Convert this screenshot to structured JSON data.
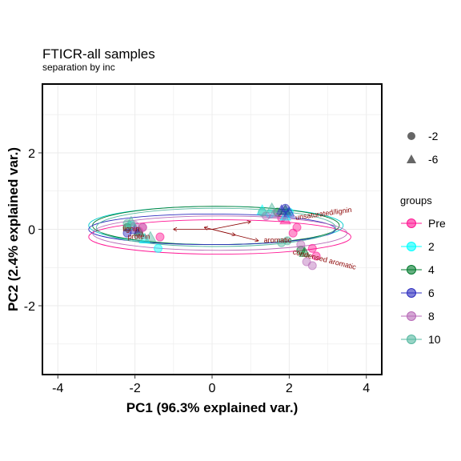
{
  "chart_data": {
    "type": "scatter",
    "title": "FTICR-all samples",
    "subtitle": "separation by inc",
    "xlabel": "PC1 (96.3% explained var.)",
    "ylabel": "PC2 (2.4% explained var.)",
    "xlim": [
      -4.4,
      4.4
    ],
    "ylim": [
      -3.8,
      3.8
    ],
    "xticks": [
      -4,
      -2,
      0,
      2,
      4
    ],
    "yticks": [
      -2,
      0,
      2
    ],
    "grid": true,
    "legend_shape": {
      "entries": [
        {
          "label": "-2",
          "shape": "circle"
        },
        {
          "label": "-6",
          "shape": "triangle"
        }
      ]
    },
    "legend_groups": {
      "title": "groups",
      "entries": [
        {
          "label": "Pre",
          "color": "#ff1493"
        },
        {
          "label": "2",
          "color": "#00ffff"
        },
        {
          "label": "4",
          "color": "#007a2d"
        },
        {
          "label": "6",
          "color": "#2d2dbf"
        },
        {
          "label": "8",
          "color": "#b86bb8"
        },
        {
          "label": "10",
          "color": "#55b8a0"
        }
      ]
    },
    "ellipses": [
      {
        "group": "Pre",
        "cx": 0.2,
        "cy": -0.2,
        "rx": 3.4,
        "ry": 0.45,
        "color": "#ff1493"
      },
      {
        "group": "2",
        "cx": 0.1,
        "cy": 0.1,
        "rx": 3.3,
        "ry": 0.5,
        "color": "#00cccc"
      },
      {
        "group": "4",
        "cx": 0.1,
        "cy": 0.1,
        "rx": 3.2,
        "ry": 0.5,
        "color": "#007a2d"
      },
      {
        "group": "6",
        "cx": 0.0,
        "cy": 0.0,
        "rx": 3.2,
        "ry": 0.4,
        "color": "#2d2dbf"
      },
      {
        "group": "8",
        "cx": 0.2,
        "cy": -0.1,
        "rx": 3.3,
        "ry": 0.45,
        "color": "#b86bb8"
      },
      {
        "group": "10",
        "cx": 0.1,
        "cy": 0.05,
        "rx": 3.1,
        "ry": 0.5,
        "color": "#55b8a0"
      }
    ],
    "arrows": [
      {
        "label": "lignin",
        "x": -0.2,
        "y": 0.05
      },
      {
        "label": "aromatic",
        "x": 0.6,
        "y": -0.15
      },
      {
        "label": "condensed aromatic",
        "x": 1.2,
        "y": -0.3
      },
      {
        "label": "unsaturated/lignin",
        "x": 1.0,
        "y": 0.2
      },
      {
        "label": "protein",
        "x": -1.0,
        "y": 0.0
      }
    ],
    "arrow_labels": [
      {
        "text": "unsaturated/lignin",
        "x": 2.9,
        "y": 0.35,
        "angle": -8
      },
      {
        "text": "condensed aromatic",
        "x": 2.9,
        "y": -0.85,
        "angle": 14
      },
      {
        "text": "aromatic",
        "x": 1.7,
        "y": -0.35,
        "angle": 0
      },
      {
        "text": "protein",
        "x": -1.9,
        "y": -0.25,
        "angle": 0
      },
      {
        "text": "lignin",
        "x": -2.1,
        "y": -0.05,
        "angle": 0
      }
    ],
    "points": [
      {
        "group": "Pre",
        "shape": "circle",
        "x": -1.9,
        "y": -0.05
      },
      {
        "group": "Pre",
        "shape": "circle",
        "x": -1.8,
        "y": 0.05
      },
      {
        "group": "Pre",
        "shape": "circle",
        "x": -1.9,
        "y": -0.1
      },
      {
        "group": "Pre",
        "shape": "circle",
        "x": -1.35,
        "y": -0.2
      },
      {
        "group": "Pre",
        "shape": "circle",
        "x": 1.8,
        "y": 0.3
      },
      {
        "group": "Pre",
        "shape": "triangle",
        "x": 1.9,
        "y": 0.25
      },
      {
        "group": "Pre",
        "shape": "circle",
        "x": 2.1,
        "y": -0.1
      },
      {
        "group": "Pre",
        "shape": "circle",
        "x": 2.2,
        "y": 0.05
      },
      {
        "group": "Pre",
        "shape": "circle",
        "x": 2.6,
        "y": -0.5
      },
      {
        "group": "Pre",
        "shape": "circle",
        "x": 2.7,
        "y": -0.7
      },
      {
        "group": "2",
        "shape": "circle",
        "x": -1.4,
        "y": -0.5
      },
      {
        "group": "2",
        "shape": "triangle",
        "x": -1.75,
        "y": -0.25
      },
      {
        "group": "2",
        "shape": "circle",
        "x": -2.1,
        "y": 0.1
      },
      {
        "group": "2",
        "shape": "triangle",
        "x": 1.3,
        "y": 0.5
      },
      {
        "group": "2",
        "shape": "circle",
        "x": 1.5,
        "y": 0.4
      },
      {
        "group": "2",
        "shape": "triangle",
        "x": 1.9,
        "y": 0.35
      },
      {
        "group": "2",
        "shape": "circle",
        "x": 2.0,
        "y": 0.45
      },
      {
        "group": "4",
        "shape": "circle",
        "x": -2.2,
        "y": 0.05
      },
      {
        "group": "4",
        "shape": "triangle",
        "x": -1.9,
        "y": -0.05
      },
      {
        "group": "4",
        "shape": "circle",
        "x": 1.7,
        "y": 0.45
      },
      {
        "group": "4",
        "shape": "triangle",
        "x": 1.9,
        "y": 0.5
      },
      {
        "group": "4",
        "shape": "circle",
        "x": 2.3,
        "y": -0.55
      },
      {
        "group": "4",
        "shape": "triangle",
        "x": 2.4,
        "y": -0.6
      },
      {
        "group": "6",
        "shape": "circle",
        "x": -2.2,
        "y": -0.1
      },
      {
        "group": "6",
        "shape": "triangle",
        "x": -2.0,
        "y": 0.0
      },
      {
        "group": "6",
        "shape": "triangle",
        "x": 1.8,
        "y": 0.5
      },
      {
        "group": "6",
        "shape": "circle",
        "x": 1.9,
        "y": 0.55
      },
      {
        "group": "6",
        "shape": "triangle",
        "x": 2.0,
        "y": 0.45
      },
      {
        "group": "8",
        "shape": "circle",
        "x": -2.0,
        "y": 0.1
      },
      {
        "group": "8",
        "shape": "circle",
        "x": -1.8,
        "y": 0.05
      },
      {
        "group": "8",
        "shape": "circle",
        "x": 1.4,
        "y": 0.35
      },
      {
        "group": "8",
        "shape": "triangle",
        "x": 1.6,
        "y": 0.4
      },
      {
        "group": "8",
        "shape": "circle",
        "x": 2.3,
        "y": -0.4
      },
      {
        "group": "8",
        "shape": "circle",
        "x": 2.45,
        "y": -0.85
      },
      {
        "group": "8",
        "shape": "circle",
        "x": 2.6,
        "y": -0.95
      },
      {
        "group": "10",
        "shape": "circle",
        "x": -2.2,
        "y": 0.15
      },
      {
        "group": "10",
        "shape": "triangle",
        "x": -2.1,
        "y": 0.2
      },
      {
        "group": "10",
        "shape": "circle",
        "x": -1.9,
        "y": -0.2
      },
      {
        "group": "10",
        "shape": "triangle",
        "x": -1.6,
        "y": -0.2
      },
      {
        "group": "10",
        "shape": "circle",
        "x": 1.3,
        "y": 0.45
      },
      {
        "group": "10",
        "shape": "triangle",
        "x": 1.55,
        "y": 0.55
      },
      {
        "group": "10",
        "shape": "circle",
        "x": 1.8,
        "y": -0.35
      },
      {
        "group": "10",
        "shape": "circle",
        "x": 1.95,
        "y": -0.3
      }
    ]
  }
}
